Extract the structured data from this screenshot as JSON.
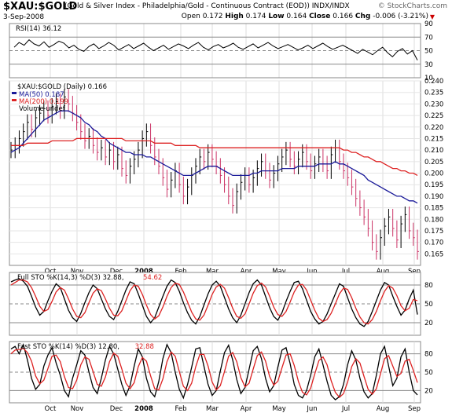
{
  "header": {
    "symbol": "$XAU:$GOLD",
    "description": "(Gold & Silver Index - Philadelphia/Gold - Continuous Contract (EOD)) INDX/INDX",
    "site": "© StockCharts.com",
    "date": "3-Sep-2008",
    "open_label": "Open",
    "open": "0.172",
    "high_label": "High",
    "high": "0.174",
    "low_label": "Low",
    "low": "0.164",
    "close_label": "Close",
    "close": "0.166",
    "chg_label": "Chg",
    "chg": "-0.006 (-3.21%)"
  },
  "colors": {
    "price_up": "#000000",
    "price_down": "#cc3366",
    "ma50": "#1a1a99",
    "ma200": "#dd2222",
    "sto_k": "#000000",
    "sto_d": "#dd2222"
  },
  "chart_data": [
    {
      "type": "line",
      "panel": "rsi",
      "title": "RSI(14) 36.12",
      "ylim": [
        10,
        90
      ],
      "yticks": [
        10,
        30,
        50,
        70,
        90
      ],
      "series": [
        {
          "name": "RSI(14)",
          "values": [
            55,
            62,
            58,
            66,
            60,
            57,
            63,
            55,
            59,
            64,
            61,
            54,
            58,
            52,
            49,
            56,
            60,
            53,
            57,
            62,
            58,
            51,
            55,
            59,
            53,
            57,
            61,
            55,
            50,
            54,
            58,
            52,
            56,
            60,
            57,
            53,
            58,
            62,
            55,
            51,
            56,
            59,
            54,
            57,
            61,
            55,
            52,
            56,
            60,
            54,
            58,
            62,
            57,
            53,
            56,
            59,
            55,
            51,
            54,
            58,
            53,
            57,
            61,
            56,
            52,
            55,
            58,
            54,
            50,
            46,
            52,
            48,
            44,
            50,
            55,
            47,
            41,
            49,
            53,
            45,
            50,
            36
          ]
        }
      ]
    },
    {
      "type": "line",
      "panel": "price",
      "title": "$XAU:$GOLD (Daily) 0.166",
      "legend": [
        "MA(50) 0.187",
        "MA(200) 0.199",
        "Volume undef"
      ],
      "ylim": [
        0.16,
        0.24
      ],
      "yticks": [
        0.165,
        0.17,
        0.175,
        0.18,
        0.185,
        0.19,
        0.195,
        0.2,
        0.205,
        0.21,
        0.215,
        0.22,
        0.225,
        0.23,
        0.235,
        0.24
      ],
      "xticks": [
        "Oct",
        "Nov",
        "Dec",
        "2008",
        "Feb",
        "Mar",
        "Apr",
        "May",
        "Jun",
        "Jul",
        "Aug",
        "Sep"
      ],
      "series": [
        {
          "name": "$XAU:$GOLD",
          "values": [
            0.21,
            0.212,
            0.215,
            0.218,
            0.222,
            0.219,
            0.224,
            0.226,
            0.228,
            0.225,
            0.229,
            0.231,
            0.227,
            0.233,
            0.23,
            0.226,
            0.222,
            0.218,
            0.214,
            0.216,
            0.212,
            0.209,
            0.211,
            0.207,
            0.21,
            0.205,
            0.208,
            0.202,
            0.199,
            0.203,
            0.206,
            0.21,
            0.215,
            0.218,
            0.212,
            0.207,
            0.203,
            0.198,
            0.193,
            0.197,
            0.201,
            0.195,
            0.19,
            0.194,
            0.199,
            0.203,
            0.207,
            0.205,
            0.209,
            0.206,
            0.203,
            0.199,
            0.195,
            0.19,
            0.186,
            0.192,
            0.196,
            0.199,
            0.195,
            0.198,
            0.202,
            0.205,
            0.201,
            0.197,
            0.2,
            0.204,
            0.207,
            0.21,
            0.206,
            0.203,
            0.206,
            0.209,
            0.205,
            0.201,
            0.204,
            0.207,
            0.204,
            0.201,
            0.208,
            0.211,
            0.205,
            0.201,
            0.198,
            0.194,
            0.189,
            0.185,
            0.181,
            0.176,
            0.17,
            0.166,
            0.172,
            0.177,
            0.181,
            0.176,
            0.171,
            0.178,
            0.182,
            0.175,
            0.172,
            0.166
          ]
        },
        {
          "name": "MA(50)",
          "values": [
            0.209,
            0.21,
            0.211,
            0.213,
            0.215,
            0.217,
            0.219,
            0.221,
            0.223,
            0.224,
            0.225,
            0.226,
            0.227,
            0.227,
            0.227,
            0.226,
            0.225,
            0.224,
            0.222,
            0.221,
            0.219,
            0.218,
            0.216,
            0.215,
            0.213,
            0.212,
            0.211,
            0.21,
            0.209,
            0.209,
            0.208,
            0.208,
            0.208,
            0.207,
            0.207,
            0.206,
            0.205,
            0.204,
            0.203,
            0.202,
            0.201,
            0.2,
            0.199,
            0.199,
            0.199,
            0.2,
            0.201,
            0.202,
            0.203,
            0.203,
            0.203,
            0.202,
            0.201,
            0.2,
            0.199,
            0.199,
            0.199,
            0.199,
            0.199,
            0.2,
            0.2,
            0.201,
            0.201,
            0.201,
            0.201,
            0.201,
            0.202,
            0.202,
            0.202,
            0.202,
            0.203,
            0.203,
            0.203,
            0.203,
            0.203,
            0.204,
            0.204,
            0.204,
            0.204,
            0.205,
            0.204,
            0.204,
            0.203,
            0.202,
            0.201,
            0.2,
            0.199,
            0.197,
            0.196,
            0.195,
            0.194,
            0.193,
            0.192,
            0.191,
            0.19,
            0.19,
            0.189,
            0.188,
            0.188,
            0.187
          ]
        },
        {
          "name": "MA(200)",
          "values": [
            0.212,
            0.212,
            0.212,
            0.212,
            0.213,
            0.213,
            0.213,
            0.213,
            0.213,
            0.213,
            0.214,
            0.214,
            0.214,
            0.214,
            0.214,
            0.214,
            0.215,
            0.215,
            0.215,
            0.215,
            0.215,
            0.215,
            0.215,
            0.215,
            0.215,
            0.215,
            0.215,
            0.215,
            0.214,
            0.214,
            0.214,
            0.214,
            0.214,
            0.214,
            0.214,
            0.213,
            0.213,
            0.213,
            0.213,
            0.213,
            0.212,
            0.212,
            0.212,
            0.212,
            0.212,
            0.212,
            0.211,
            0.211,
            0.211,
            0.211,
            0.211,
            0.211,
            0.211,
            0.211,
            0.211,
            0.211,
            0.211,
            0.211,
            0.211,
            0.211,
            0.211,
            0.211,
            0.211,
            0.211,
            0.211,
            0.211,
            0.211,
            0.211,
            0.211,
            0.211,
            0.211,
            0.211,
            0.211,
            0.211,
            0.211,
            0.211,
            0.211,
            0.211,
            0.211,
            0.211,
            0.211,
            0.21,
            0.21,
            0.209,
            0.209,
            0.208,
            0.207,
            0.207,
            0.206,
            0.205,
            0.205,
            0.204,
            0.203,
            0.202,
            0.202,
            0.201,
            0.201,
            0.2,
            0.2,
            0.199
          ]
        }
      ]
    },
    {
      "type": "line",
      "panel": "full_sto",
      "title": "Full STO %K(14,3) %D(3) 32.88, 54.62",
      "legend": [
        "Full STO %K(14,3) %D(3) 32.88,",
        "54.62"
      ],
      "ylim": [
        0,
        100
      ],
      "yticks": [
        20,
        50,
        80
      ],
      "series": [
        {
          "name": "%K",
          "values": [
            85,
            88,
            90,
            86,
            78,
            62,
            45,
            32,
            38,
            55,
            70,
            82,
            76,
            58,
            40,
            28,
            22,
            35,
            52,
            68,
            80,
            74,
            58,
            42,
            30,
            25,
            38,
            55,
            72,
            85,
            82,
            66,
            48,
            30,
            20,
            28,
            45,
            62,
            78,
            88,
            84,
            70,
            52,
            36,
            24,
            18,
            30,
            48,
            66,
            80,
            86,
            78,
            60,
            42,
            28,
            20,
            32,
            50,
            68,
            82,
            88,
            80,
            62,
            44,
            30,
            24,
            36,
            54,
            70,
            84,
            86,
            74,
            56,
            38,
            26,
            18,
            22,
            34,
            50,
            66,
            82,
            78,
            60,
            42,
            28,
            18,
            14,
            22,
            38,
            55,
            72,
            84,
            80,
            62,
            46,
            32,
            40,
            58,
            72,
            33
          ]
        },
        {
          "name": "%D",
          "values": [
            80,
            84,
            88,
            88,
            85,
            76,
            62,
            46,
            38,
            41,
            54,
            69,
            76,
            72,
            58,
            42,
            30,
            28,
            36,
            52,
            67,
            74,
            71,
            58,
            43,
            32,
            31,
            39,
            55,
            71,
            80,
            78,
            65,
            48,
            33,
            26,
            31,
            45,
            62,
            76,
            83,
            81,
            69,
            53,
            37,
            26,
            24,
            32,
            48,
            65,
            77,
            81,
            75,
            60,
            43,
            30,
            27,
            34,
            50,
            67,
            79,
            83,
            77,
            62,
            45,
            33,
            30,
            38,
            53,
            69,
            80,
            81,
            72,
            56,
            40,
            27,
            22,
            25,
            35,
            50,
            66,
            75,
            73,
            60,
            43,
            29,
            20,
            18,
            25,
            38,
            55,
            70,
            79,
            75,
            63,
            47,
            39,
            43,
            57,
            55
          ]
        }
      ]
    },
    {
      "type": "line",
      "panel": "fast_sto",
      "title": "Fast STO %K(14) %D(3) 12.80, 32.88",
      "legend": [
        "Fast STO %K(14) %D(3) 12.80,",
        "32.88"
      ],
      "ylim": [
        0,
        100
      ],
      "yticks": [
        20,
        50,
        80
      ],
      "xticks": [
        "Oct",
        "Nov",
        "Dec",
        "2008",
        "Feb",
        "Mar",
        "Apr",
        "May",
        "Jun",
        "Jul",
        "Aug",
        "Sep"
      ],
      "series": [
        {
          "name": "%K",
          "values": [
            88,
            92,
            80,
            95,
            70,
            40,
            22,
            30,
            60,
            78,
            90,
            65,
            45,
            20,
            10,
            40,
            62,
            85,
            78,
            50,
            25,
            15,
            40,
            70,
            92,
            80,
            55,
            30,
            12,
            28,
            60,
            88,
            75,
            40,
            18,
            10,
            35,
            72,
            95,
            82,
            50,
            22,
            8,
            30,
            58,
            88,
            90,
            60,
            30,
            12,
            20,
            52,
            82,
            94,
            70,
            38,
            15,
            25,
            55,
            85,
            92,
            72,
            40,
            18,
            28,
            58,
            86,
            90,
            64,
            30,
            12,
            8,
            20,
            45,
            75,
            88,
            62,
            35,
            12,
            5,
            10,
            30,
            62,
            85,
            70,
            40,
            18,
            8,
            15,
            45,
            80,
            92,
            60,
            28,
            40,
            75,
            88,
            50,
            20,
            13
          ]
        },
        {
          "name": "%D",
          "values": [
            80,
            86,
            87,
            89,
            82,
            68,
            44,
            31,
            37,
            56,
            76,
            78,
            67,
            43,
            25,
            23,
            37,
            62,
            75,
            71,
            51,
            30,
            27,
            42,
            67,
            81,
            76,
            55,
            32,
            23,
            33,
            59,
            74,
            68,
            44,
            23,
            21,
            39,
            67,
            83,
            76,
            51,
            27,
            20,
            32,
            59,
            79,
            79,
            60,
            34,
            21,
            28,
            51,
            76,
            82,
            67,
            41,
            26,
            32,
            55,
            77,
            83,
            68,
            43,
            29,
            35,
            57,
            78,
            80,
            61,
            35,
            17,
            13,
            24,
            47,
            69,
            75,
            62,
            36,
            17,
            9,
            15,
            34,
            59,
            72,
            65,
            43,
            22,
            14,
            23,
            47,
            72,
            77,
            60,
            43,
            48,
            68,
            71,
            53,
            33
          ]
        }
      ]
    }
  ]
}
